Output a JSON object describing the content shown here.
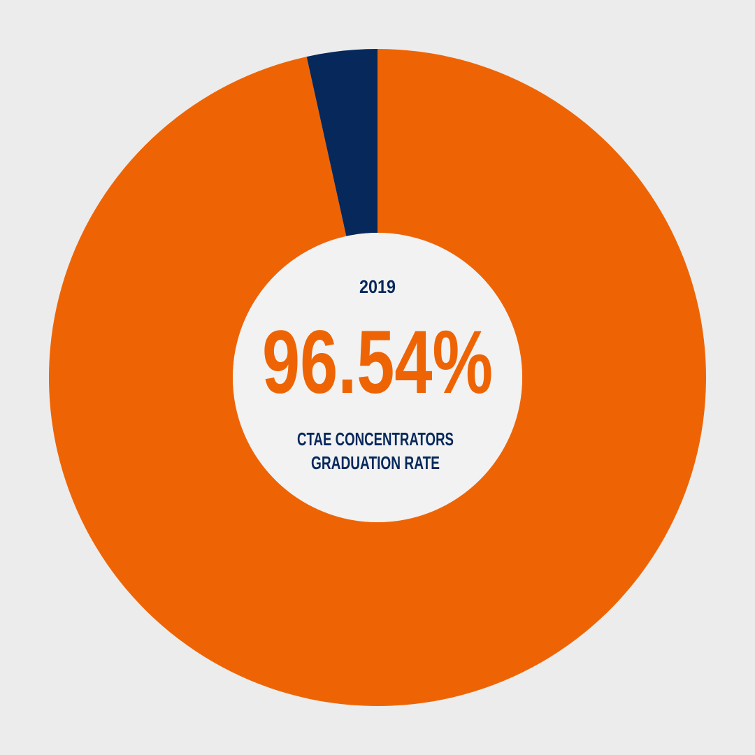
{
  "chart_data": {
    "type": "donut",
    "title": "2019",
    "caption": [
      "CTAE CONCENTRATORS",
      "GRADUATION RATE"
    ],
    "values": [
      96.54,
      3.46
    ],
    "value_labels": [
      "96.54%",
      null
    ],
    "colors": [
      "#ee6404",
      "#06285b"
    ]
  }
}
